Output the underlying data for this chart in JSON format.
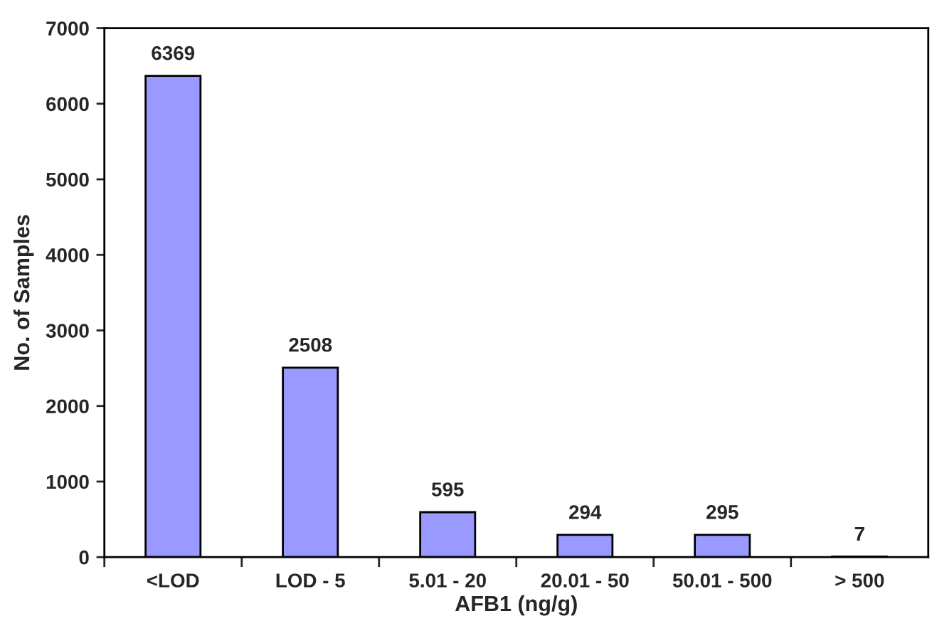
{
  "chart_data": {
    "type": "bar",
    "xlabel": "AFB1 (ng/g)",
    "ylabel": "No. of Samples",
    "categories": [
      "<LOD",
      "LOD - 5",
      "5.01 - 20",
      "20.01 - 50",
      "50.01 - 500",
      "> 500"
    ],
    "values": [
      6369,
      2508,
      595,
      294,
      295,
      7
    ],
    "color": "#9999ff",
    "ylim": [
      0,
      7000
    ],
    "yticks": [
      0,
      1000,
      2000,
      3000,
      4000,
      5000,
      6000,
      7000
    ],
    "data_labels": true,
    "grid": false,
    "legend": false
  }
}
